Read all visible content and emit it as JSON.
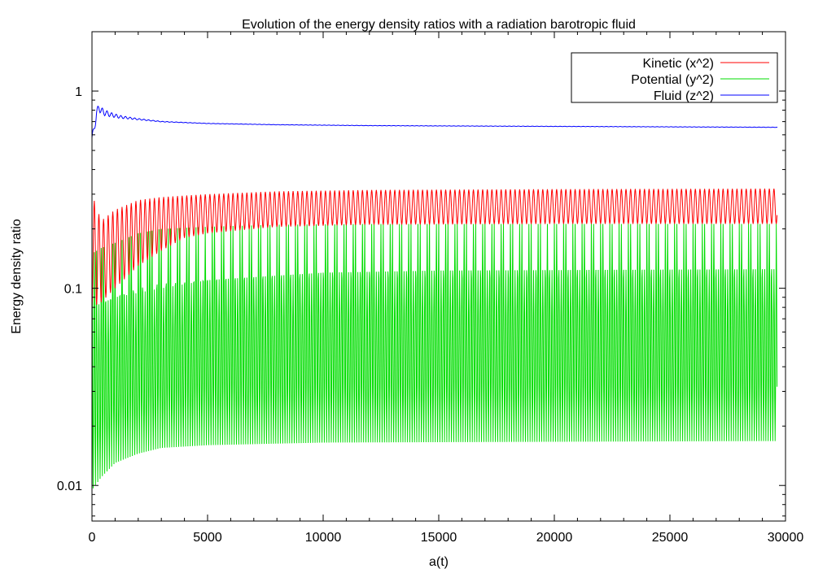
{
  "chart_data": {
    "type": "line",
    "title": "Evolution of the energy density ratios with a radiation barotropic fluid",
    "xlabel": "a(t)",
    "ylabel": "Energy density ratio",
    "xlim": [
      0,
      30000
    ],
    "ylim": [
      0.0066,
      2.0
    ],
    "yscale": "log",
    "grid": false,
    "legend_position": "top-right",
    "x_ticks": [
      0,
      5000,
      10000,
      15000,
      20000,
      25000,
      30000
    ],
    "x_tick_labels": [
      "0",
      "5000",
      "10000",
      "15000",
      "20000",
      "25000",
      "30000"
    ],
    "y_ticks": [
      0.01,
      0.1,
      1
    ],
    "y_tick_labels": [
      "0.01",
      "0.1",
      "1"
    ],
    "x_end": 29650,
    "series": [
      {
        "name": "Kinetic (x^2)",
        "color": "#ff0000",
        "oscillation_period": 200,
        "upper_envelope": [
          [
            0,
            0.3
          ],
          [
            400,
            0.22
          ],
          [
            1000,
            0.25
          ],
          [
            2000,
            0.28
          ],
          [
            3000,
            0.29
          ],
          [
            5000,
            0.3
          ],
          [
            8000,
            0.31
          ],
          [
            12000,
            0.315
          ],
          [
            20000,
            0.318
          ],
          [
            29650,
            0.32
          ]
        ],
        "lower_envelope": [
          [
            0,
            0.08
          ],
          [
            400,
            0.085
          ],
          [
            1000,
            0.1
          ],
          [
            2000,
            0.13
          ],
          [
            3000,
            0.155
          ],
          [
            4000,
            0.18
          ],
          [
            5000,
            0.19
          ],
          [
            8000,
            0.205
          ],
          [
            12000,
            0.21
          ],
          [
            20000,
            0.212
          ],
          [
            29650,
            0.212
          ]
        ]
      },
      {
        "name": "Potential (y^2)",
        "color": "#00dd00",
        "oscillation_period": 200,
        "upper_envelope": [
          [
            0,
            0.15
          ],
          [
            400,
            0.16
          ],
          [
            1000,
            0.17
          ],
          [
            2000,
            0.19
          ],
          [
            3000,
            0.2
          ],
          [
            5000,
            0.205
          ],
          [
            8000,
            0.21
          ],
          [
            12000,
            0.212
          ],
          [
            29650,
            0.212
          ]
        ],
        "lower_envelope": [
          [
            0,
            0.0095
          ],
          [
            400,
            0.011
          ],
          [
            1000,
            0.013
          ],
          [
            2000,
            0.0145
          ],
          [
            3000,
            0.0155
          ],
          [
            5000,
            0.016
          ],
          [
            10000,
            0.0165
          ],
          [
            29650,
            0.0168
          ]
        ],
        "inner_envelope": [
          [
            0,
            0.08
          ],
          [
            1000,
            0.09
          ],
          [
            3000,
            0.1
          ],
          [
            5000,
            0.11
          ],
          [
            10000,
            0.12
          ],
          [
            15000,
            0.123
          ],
          [
            29650,
            0.125
          ]
        ]
      },
      {
        "name": "Fluid (z^2)",
        "color": "#0000ff",
        "oscillation_period": 200,
        "points": [
          [
            0,
            0.58
          ],
          [
            80,
            0.62
          ],
          [
            200,
            0.78
          ],
          [
            300,
            0.82
          ],
          [
            500,
            0.78
          ],
          [
            800,
            0.76
          ],
          [
            1200,
            0.74
          ],
          [
            2000,
            0.72
          ],
          [
            3000,
            0.7
          ],
          [
            5000,
            0.685
          ],
          [
            8000,
            0.675
          ],
          [
            12000,
            0.668
          ],
          [
            20000,
            0.662
          ],
          [
            29650,
            0.655
          ]
        ]
      }
    ]
  }
}
